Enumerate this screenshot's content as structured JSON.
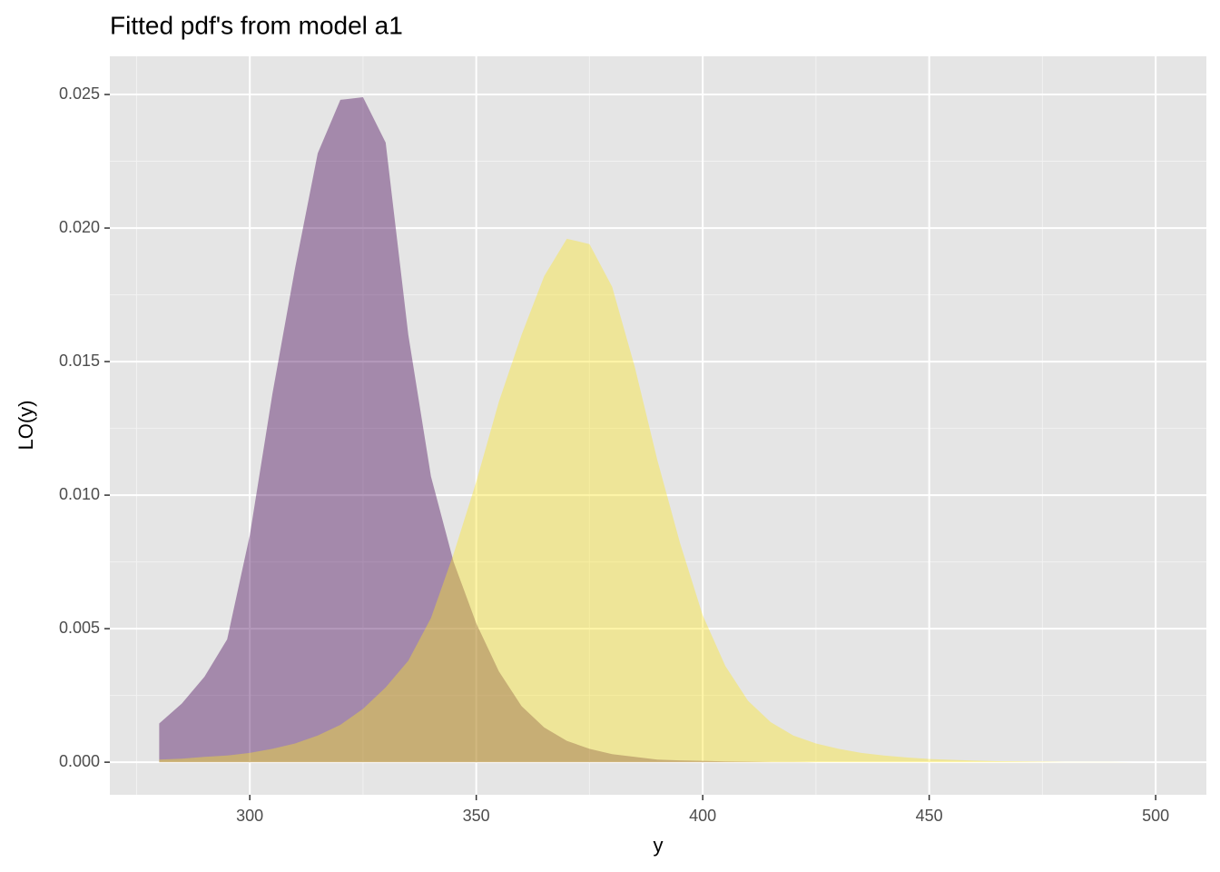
{
  "chart_data": {
    "type": "area",
    "title": "Fitted pdf's from model a1",
    "x_label": "y",
    "y_label": "LO(y)",
    "x": [
      280,
      285,
      290,
      295,
      300,
      305,
      310,
      315,
      320,
      325,
      330,
      335,
      340,
      345,
      350,
      355,
      360,
      365,
      370,
      375,
      380,
      385,
      390,
      395,
      400,
      405,
      410,
      415,
      420,
      425,
      430,
      435,
      440,
      445,
      450,
      455,
      460,
      465,
      470,
      475,
      480,
      485,
      490,
      495,
      500
    ],
    "series": [
      {
        "color": "#440154",
        "opacity": 0.4,
        "values": [
          0.00145,
          0.0022,
          0.0032,
          0.0046,
          0.0085,
          0.0138,
          0.0185,
          0.0228,
          0.0248,
          0.0249,
          0.0232,
          0.016,
          0.0107,
          0.0075,
          0.0052,
          0.0034,
          0.0021,
          0.0013,
          0.0008,
          0.0005,
          0.0003,
          0.0002,
          0.0001,
          7e-05,
          5e-05,
          3e-05,
          2e-05,
          1e-05,
          1e-05,
          0,
          0,
          0,
          0,
          0,
          0,
          0,
          0,
          0,
          0,
          0,
          0,
          0,
          0,
          0,
          0
        ]
      },
      {
        "color": "#FDE725",
        "opacity": 0.4,
        "values": [
          0.0001,
          0.00013,
          0.0002,
          0.00025,
          0.00035,
          0.0005,
          0.0007,
          0.001,
          0.0014,
          0.002,
          0.0028,
          0.0038,
          0.0054,
          0.0078,
          0.0105,
          0.0135,
          0.016,
          0.0182,
          0.0196,
          0.0194,
          0.0178,
          0.0148,
          0.0113,
          0.0082,
          0.0055,
          0.0036,
          0.0023,
          0.0015,
          0.001,
          0.0007,
          0.0005,
          0.00035,
          0.00025,
          0.00018,
          0.00012,
          9e-05,
          6e-05,
          4e-05,
          3e-05,
          2e-05,
          1e-05,
          1e-05,
          1e-05,
          0,
          0
        ]
      }
    ],
    "xlim": [
      269.1,
      511.2
    ],
    "ylim": [
      -0.00122,
      0.02643
    ],
    "xticks": [
      300,
      350,
      400,
      450,
      500
    ],
    "yticks": [
      {
        "value": 0,
        "label": "0.000"
      },
      0.005,
      {
        "value": 0.01,
        "label": "0.010"
      },
      0.015,
      {
        "value": 0.02,
        "label": "0.020"
      },
      0.025
    ],
    "x_minor_grid": [
      275,
      325,
      375,
      425,
      475
    ],
    "y_minor_grid": [
      0.0025,
      0.0075,
      0.0125,
      0.0175,
      0.0225
    ],
    "grid": true
  }
}
